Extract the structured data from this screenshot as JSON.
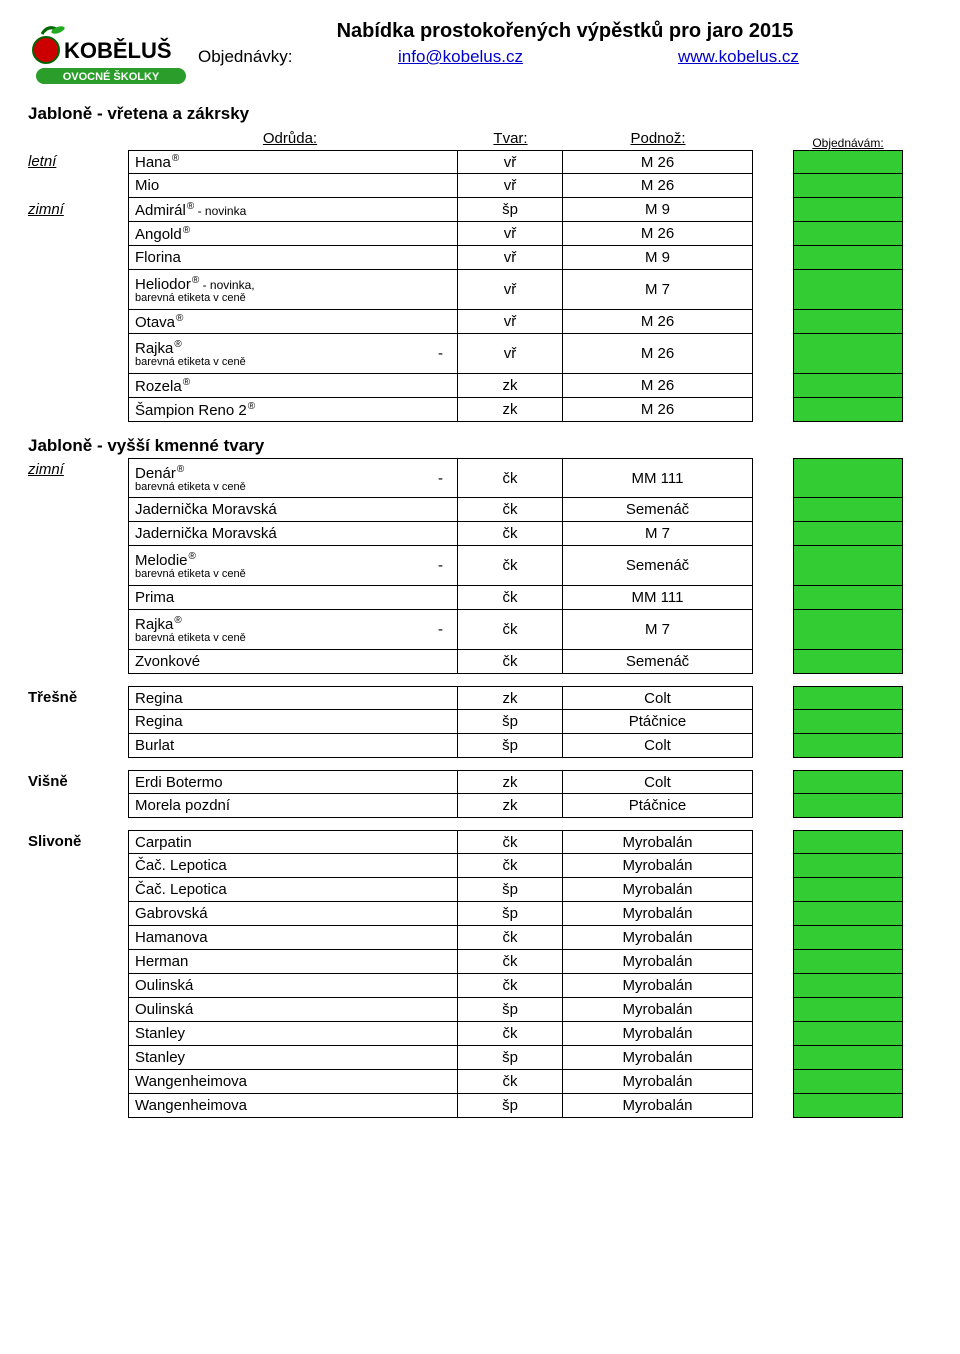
{
  "header": {
    "title": "Nabídka prostokořených výpěstků pro jaro 2015",
    "order_label": "Objednávky:",
    "email": "info@kobelus.cz",
    "web": "www.kobelus.cz",
    "logo_top": "KOBĚLUŠ",
    "logo_sub": "OVOCNÉ ŠKOLKY"
  },
  "col_headers": {
    "odruda": "Odrůda:",
    "tvar": "Tvar:",
    "podnoz": "Podnož:",
    "objednavam": "Objednávám:"
  },
  "sub_label": "barevná etiketa v ceně",
  "sections": [
    {
      "title": "Jabloně - vřetena a zákrsky",
      "show_headers": true,
      "rows": [
        {
          "left": "letní",
          "name": "Hana",
          "reg": true,
          "tvar": "vř",
          "podnoz": "M 26"
        },
        {
          "name": "Mio",
          "tvar": "vř",
          "podnoz": "M 26"
        },
        {
          "left": "zimní",
          "name": "Admirál",
          "reg": true,
          "suffix": " - novinka",
          "tvar": "šp",
          "podnoz": "M 9"
        },
        {
          "name": "Angold",
          "reg": true,
          "tvar": "vř",
          "podnoz": "M 26"
        },
        {
          "name": "Florina",
          "tvar": "vř",
          "podnoz": "M 9"
        },
        {
          "name": "Heliodor",
          "reg": true,
          "suffix": " - novinka,",
          "sub": true,
          "tvar": "vř",
          "podnoz": "M 7",
          "tall": true
        },
        {
          "name": "Otava",
          "reg": true,
          "tvar": "vř",
          "podnoz": "M 26"
        },
        {
          "name": "Rajka",
          "reg": true,
          "sub": true,
          "dash": true,
          "tvar": "vř",
          "podnoz": "M 26",
          "tall": true
        },
        {
          "name": "Rozela",
          "reg": true,
          "tvar": "zk",
          "podnoz": "M 26"
        },
        {
          "name": "Šampion Reno 2",
          "reg": true,
          "tvar": "zk",
          "podnoz": "M 26"
        }
      ]
    },
    {
      "title": "Jabloně - vyšší kmenné tvary",
      "rows": [
        {
          "left": "zimní",
          "name": "Denár",
          "reg": true,
          "sub": true,
          "dash": true,
          "tvar": "čk",
          "podnoz": "MM 111",
          "tall": true
        },
        {
          "name": "Jadernička Moravská",
          "tvar": "čk",
          "podnoz": "Semenáč"
        },
        {
          "name": "Jadernička Moravská",
          "tvar": "čk",
          "podnoz": "M 7"
        },
        {
          "name": "Melodie",
          "reg": true,
          "sub": true,
          "dash": true,
          "tvar": "čk",
          "podnoz": "Semenáč",
          "tall": true
        },
        {
          "name": "Prima",
          "tvar": "čk",
          "podnoz": "MM 111"
        },
        {
          "name": "Rajka",
          "reg": true,
          "sub": true,
          "dash": true,
          "tvar": "čk",
          "podnoz": "M 7",
          "tall": true
        },
        {
          "name": "Zvonkové",
          "tvar": "čk",
          "podnoz": "Semenáč"
        }
      ]
    },
    {
      "left_title": "Třešně",
      "rows": [
        {
          "name": "Regina",
          "tvar": "zk",
          "podnoz": "Colt"
        },
        {
          "name": "Regina",
          "tvar": "šp",
          "podnoz": "Ptáčnice"
        },
        {
          "name": "Burlat",
          "tvar": "šp",
          "podnoz": "Colt"
        }
      ]
    },
    {
      "left_title": "Višně",
      "rows": [
        {
          "name": "Erdi Botermo",
          "tvar": "zk",
          "podnoz": "Colt"
        },
        {
          "name": "Morela pozdní",
          "tvar": "zk",
          "podnoz": "Ptáčnice"
        }
      ]
    },
    {
      "left_title": "Slivoně",
      "rows": [
        {
          "name": "Carpatin",
          "tvar": "čk",
          "podnoz": "Myrobalán"
        },
        {
          "name": "Čač. Lepotica",
          "tvar": "čk",
          "podnoz": "Myrobalán"
        },
        {
          "name": "Čač. Lepotica",
          "tvar": "šp",
          "podnoz": "Myrobalán"
        },
        {
          "name": "Gabrovská",
          "tvar": "šp",
          "podnoz": "Myrobalán"
        },
        {
          "name": "Hamanova",
          "tvar": "čk",
          "podnoz": "Myrobalán"
        },
        {
          "name": "Herman",
          "tvar": "čk",
          "podnoz": "Myrobalán"
        },
        {
          "name": "Oulinská",
          "tvar": "čk",
          "podnoz": "Myrobalán"
        },
        {
          "name": "Oulinská",
          "tvar": "šp",
          "podnoz": "Myrobalán"
        },
        {
          "name": "Stanley",
          "tvar": "čk",
          "podnoz": "Myrobalán"
        },
        {
          "name": "Stanley",
          "tvar": "šp",
          "podnoz": "Myrobalán"
        },
        {
          "name": "Wangenheimova",
          "tvar": "čk",
          "podnoz": "Myrobalán"
        },
        {
          "name": "Wangenheimova",
          "tvar": "šp",
          "podnoz": "Myrobalán"
        }
      ]
    }
  ]
}
